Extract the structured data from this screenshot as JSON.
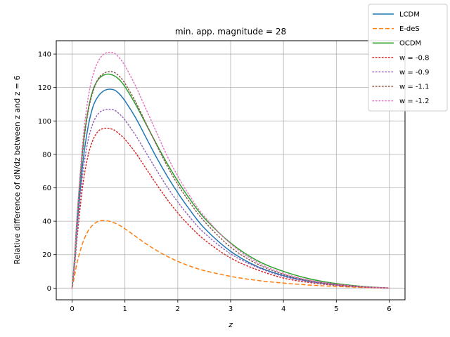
{
  "chart_data": {
    "type": "line",
    "title": "min. app. magnitude = 28",
    "xlabel": "z",
    "ylabel": "Relative difference of dN/dz between z and z = 6",
    "xlim": [
      -0.3,
      6.3
    ],
    "ylim": [
      -7,
      148
    ],
    "xticks": [
      0,
      1,
      2,
      3,
      4,
      5,
      6
    ],
    "yticks": [
      0,
      20,
      40,
      60,
      80,
      100,
      120,
      140
    ],
    "grid": true,
    "legend_position": "top-right (outside axes)",
    "x": [
      0,
      0.05,
      0.1,
      0.2,
      0.3,
      0.4,
      0.5,
      0.6,
      0.7,
      0.8,
      0.9,
      1.0,
      1.2,
      1.4,
      1.6,
      1.8,
      2.0,
      2.2,
      2.5,
      3.0,
      3.5,
      4.0,
      4.5,
      5.0,
      5.5,
      6.0
    ],
    "series": [
      {
        "name": "LCDM",
        "color": "#1f77b4",
        "dash": "solid",
        "values": [
          0,
          16,
          39,
          74,
          96,
          109,
          115,
          118,
          119,
          118.5,
          116,
          112,
          102,
          90,
          78,
          67,
          57,
          48,
          36,
          22,
          13,
          7.5,
          4,
          2,
          0.7,
          0
        ]
      },
      {
        "name": "E-deS",
        "color": "#ff7f0e",
        "dash": "dashed",
        "values": [
          0,
          8,
          16,
          27,
          34,
          38,
          40,
          40.5,
          40,
          39,
          37.5,
          35.5,
          31,
          26.5,
          22.5,
          19,
          16,
          13.5,
          10.5,
          7,
          4.6,
          3,
          1.8,
          1,
          0.4,
          0
        ]
      },
      {
        "name": "OCDM",
        "color": "#2ca02c",
        "dash": "solid",
        "values": [
          0,
          20,
          45,
          83,
          106,
          119,
          125,
          127.5,
          128,
          127,
          124.5,
          120.5,
          110,
          98,
          86,
          74.5,
          64,
          54.5,
          42,
          27,
          16.5,
          10,
          5.5,
          2.7,
          1,
          0
        ]
      },
      {
        "name": "w = -0.8",
        "color": "#d62728",
        "dash": "dotted",
        "values": [
          0,
          14,
          32,
          61,
          79,
          89,
          94,
          95.5,
          95.5,
          94.5,
          92,
          89,
          81,
          71.5,
          62,
          53,
          45,
          38,
          29,
          18,
          11,
          6,
          3.3,
          1.6,
          0.6,
          0
        ]
      },
      {
        "name": "w = -0.9",
        "color": "#9467bd",
        "dash": "dotted",
        "values": [
          0,
          15,
          36,
          68,
          88,
          99,
          104.5,
          106.5,
          107,
          106.5,
          104,
          100.5,
          91.5,
          81,
          70.5,
          60.5,
          51.5,
          43.5,
          33,
          20.5,
          12.5,
          7,
          3.8,
          1.8,
          0.7,
          0
        ]
      },
      {
        "name": "w = -1.1",
        "color": "#8c564b",
        "dash": "dotted",
        "values": [
          0,
          18,
          43,
          81,
          105,
          118,
          125.5,
          128.5,
          129.5,
          129,
          126.5,
          122.5,
          111.5,
          98.5,
          85.5,
          73,
          62,
          52.5,
          40,
          24.5,
          14.5,
          8.2,
          4.4,
          2.2,
          0.8,
          0
        ]
      },
      {
        "name": "w = -1.2",
        "color": "#e377c2",
        "dash": "dotted",
        "values": [
          0,
          19,
          46,
          87,
          113,
          128,
          136,
          140,
          141,
          140.5,
          137.5,
          133,
          121,
          107,
          93,
          79,
          67,
          56.5,
          43,
          26.5,
          15.5,
          8.8,
          4.7,
          2.3,
          0.8,
          0
        ]
      }
    ]
  }
}
